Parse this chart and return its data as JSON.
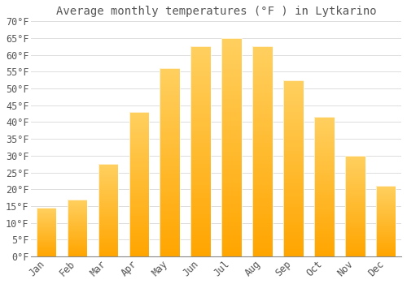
{
  "title": "Average monthly temperatures (°F ) in Lytkarino",
  "months": [
    "Jan",
    "Feb",
    "Mar",
    "Apr",
    "May",
    "Jun",
    "Jul",
    "Aug",
    "Sep",
    "Oct",
    "Nov",
    "Dec"
  ],
  "values": [
    14.5,
    17.0,
    27.5,
    43.0,
    56.0,
    62.5,
    65.0,
    62.5,
    52.5,
    41.5,
    30.0,
    21.0
  ],
  "bar_color_bottom": "#FFA500",
  "bar_color_top": "#FFD080",
  "background_color": "#ffffff",
  "grid_color": "#dddddd",
  "text_color": "#555555",
  "ylim": [
    0,
    70
  ],
  "yticks": [
    0,
    5,
    10,
    15,
    20,
    25,
    30,
    35,
    40,
    45,
    50,
    55,
    60,
    65,
    70
  ],
  "title_fontsize": 10,
  "tick_fontsize": 8.5,
  "bar_width": 0.65
}
